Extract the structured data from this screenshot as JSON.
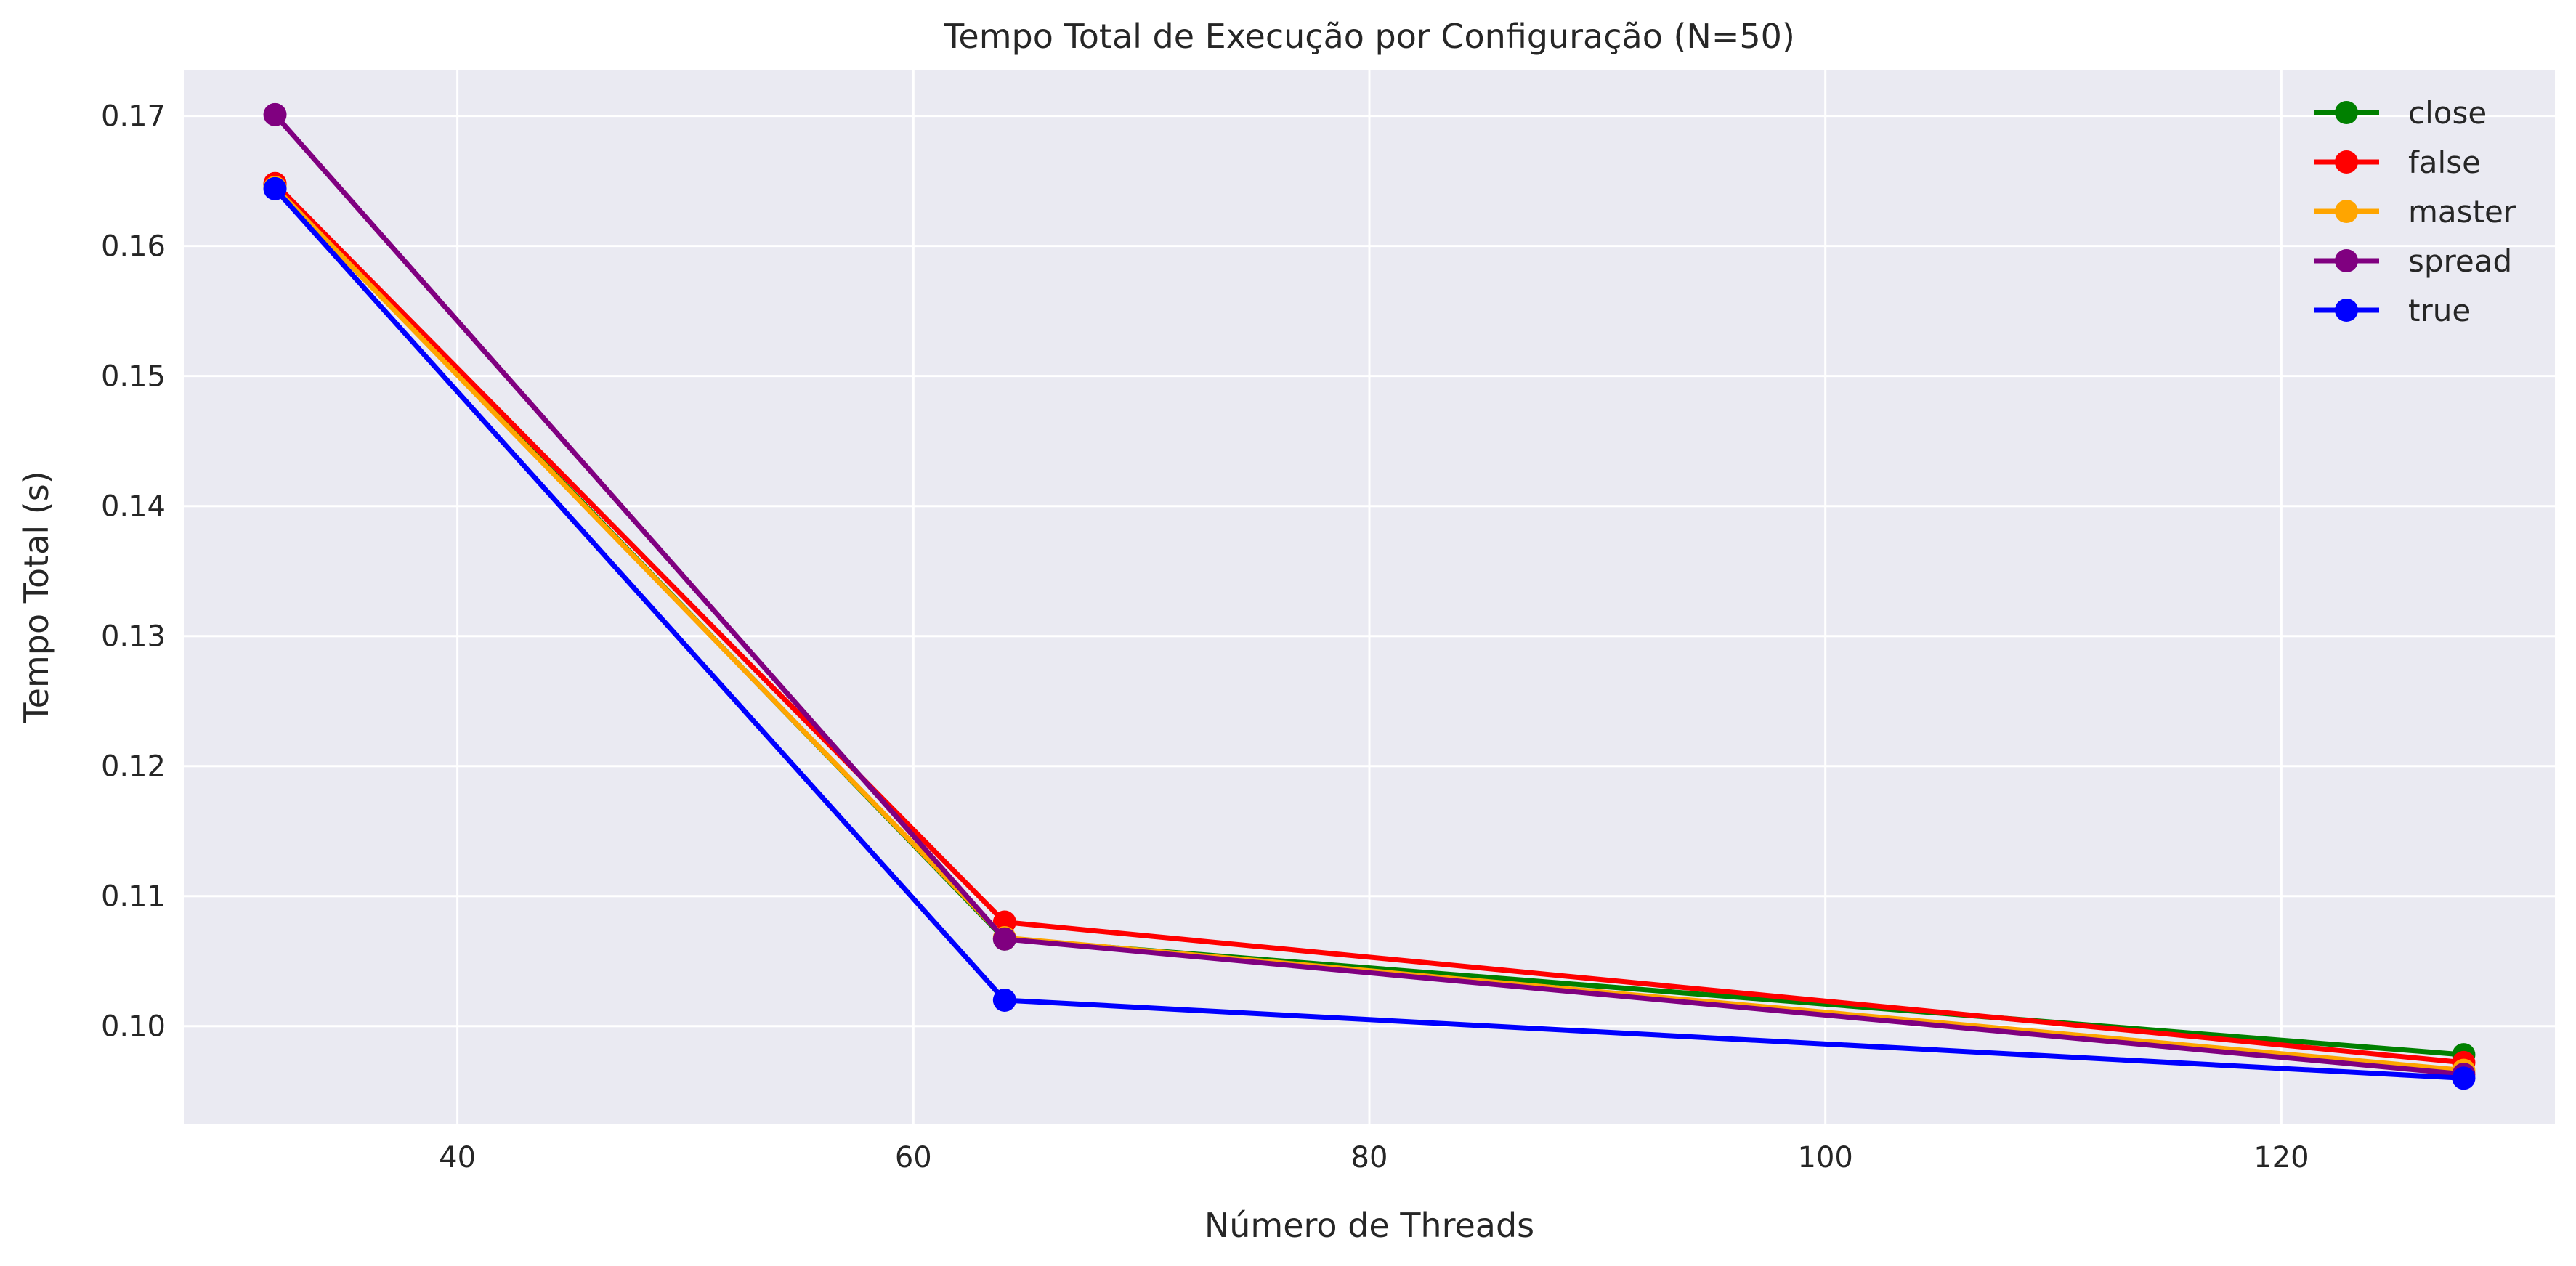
{
  "chart_data": {
    "type": "line",
    "title": "Tempo Total de Execução por Configuração (N=50)",
    "xlabel": "Número de Threads",
    "ylabel": "Tempo Total (s)",
    "x": [
      32,
      64,
      128
    ],
    "xlim": [
      28,
      132
    ],
    "ylim": [
      0.0925,
      0.1735
    ],
    "xticks": [
      40,
      60,
      80,
      100,
      120
    ],
    "yticks": [
      0.1,
      0.11,
      0.12,
      0.13,
      0.14,
      0.15,
      0.16,
      0.17
    ],
    "xtick_labels": [
      "40",
      "60",
      "80",
      "100",
      "120"
    ],
    "ytick_labels": [
      "0.10",
      "0.11",
      "0.12",
      "0.13",
      "0.14",
      "0.15",
      "0.16",
      "0.17"
    ],
    "grid": true,
    "background": "#eaeaf2",
    "legend_position": "top-right",
    "series": [
      {
        "name": "close",
        "color": "#008000",
        "values": [
          0.1647,
          0.1067,
          0.0978
        ]
      },
      {
        "name": "false",
        "color": "#ff0000",
        "values": [
          0.1648,
          0.108,
          0.0972
        ]
      },
      {
        "name": "master",
        "color": "#ffa500",
        "values": [
          0.1645,
          0.1068,
          0.0966
        ]
      },
      {
        "name": "spread",
        "color": "#800080",
        "values": [
          0.1701,
          0.1067,
          0.0963
        ]
      },
      {
        "name": "true",
        "color": "#0000ff",
        "values": [
          0.1644,
          0.102,
          0.096
        ]
      }
    ]
  }
}
